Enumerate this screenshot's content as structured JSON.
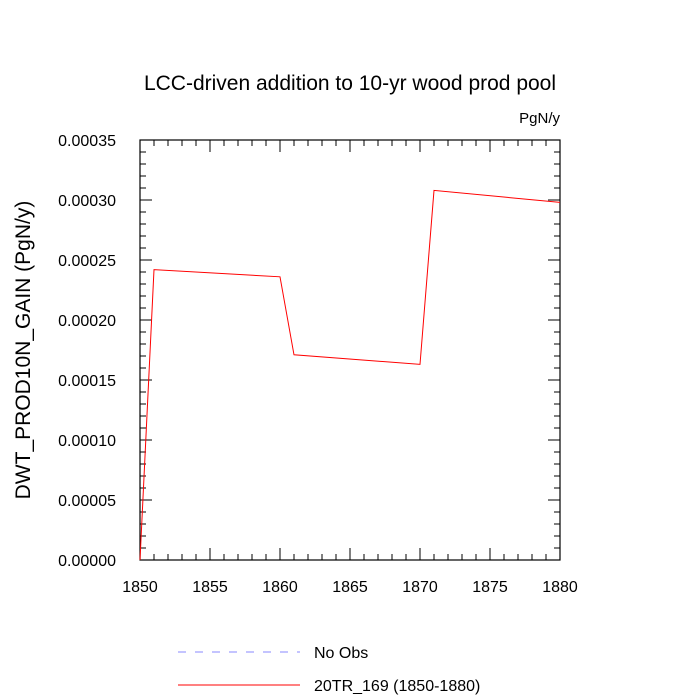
{
  "chart_data": {
    "type": "line",
    "title": "LCC-driven addition to 10-yr wood prod pool",
    "units": "PgN/y",
    "ylabel": "DWT_PROD10N_GAIN  (PgN/y)",
    "xlabel": "",
    "xlim": [
      1850,
      1880
    ],
    "ylim": [
      0,
      0.00035
    ],
    "x_ticks": [
      1850,
      1855,
      1860,
      1865,
      1870,
      1875,
      1880
    ],
    "x_tick_labels": [
      "1850",
      "1855",
      "1860",
      "1865",
      "1870",
      "1875",
      "1880"
    ],
    "y_ticks": [
      0,
      5e-05,
      0.0001,
      0.00015,
      0.0002,
      0.00025,
      0.0003,
      0.00035
    ],
    "y_tick_labels": [
      "0.00000",
      "0.00005",
      "0.00010",
      "0.00015",
      "0.00020",
      "0.00025",
      "0.00030",
      "0.00035"
    ],
    "grid": false,
    "legend_position": "bottom",
    "series": [
      {
        "name": "20TR_169 (1850-1880)",
        "color": "#ff0000",
        "style": "solid",
        "x": [
          1850,
          1851,
          1860,
          1861,
          1870,
          1871,
          1880
        ],
        "y": [
          0.0,
          0.000242,
          0.000236,
          0.000171,
          0.000163,
          0.000308,
          0.000298
        ]
      }
    ],
    "legend": [
      {
        "label": "No Obs",
        "color": "#8888ff",
        "style": "dashed"
      },
      {
        "label": "20TR_169 (1850-1880)",
        "color": "#ff0000",
        "style": "solid"
      }
    ]
  }
}
